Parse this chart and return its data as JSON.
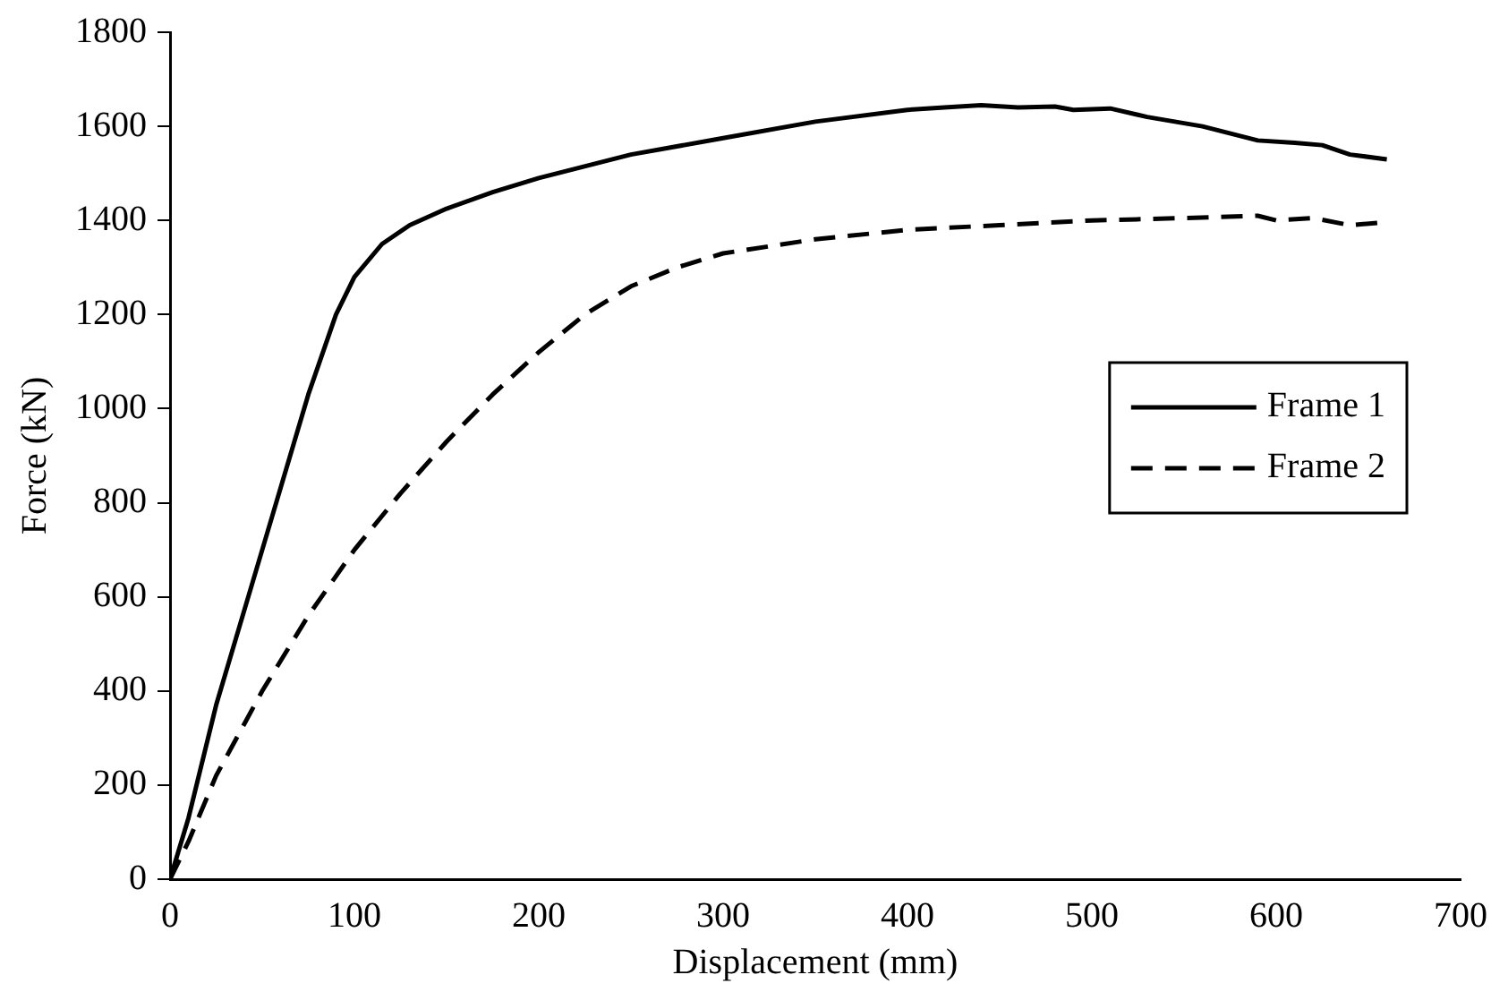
{
  "chart_data": {
    "type": "line",
    "xlabel": "Displacement (mm)",
    "ylabel": "Force (kN)",
    "xlim": [
      0,
      700
    ],
    "xticks": [
      0,
      100,
      200,
      300,
      400,
      500,
      600,
      700
    ],
    "ylim": [
      0,
      1800
    ],
    "yticks": [
      0,
      200,
      400,
      600,
      800,
      1000,
      1200,
      1400,
      1600,
      1800
    ],
    "grid": false,
    "legend": "right",
    "marker": "none",
    "series": [
      {
        "name": "Frame 1",
        "color": "#000000",
        "line_style": "solid",
        "x": [
          0,
          10,
          25,
          50,
          75,
          90,
          100,
          115,
          130,
          150,
          175,
          200,
          250,
          300,
          350,
          400,
          420,
          440,
          460,
          480,
          490,
          510,
          530,
          560,
          590,
          610,
          625,
          640,
          660
        ],
        "values": [
          0,
          130,
          370,
          700,
          1030,
          1200,
          1280,
          1350,
          1390,
          1425,
          1460,
          1490,
          1540,
          1575,
          1610,
          1635,
          1640,
          1645,
          1640,
          1642,
          1635,
          1638,
          1620,
          1600,
          1570,
          1565,
          1560,
          1540,
          1530
        ]
      },
      {
        "name": "Frame 2",
        "color": "#000000",
        "line_style": "dashed",
        "x": [
          0,
          10,
          25,
          50,
          75,
          100,
          125,
          150,
          175,
          200,
          225,
          250,
          275,
          300,
          350,
          400,
          450,
          500,
          550,
          590,
          600,
          620,
          640,
          655
        ],
        "values": [
          0,
          80,
          220,
          400,
          560,
          700,
          820,
          930,
          1030,
          1120,
          1200,
          1260,
          1300,
          1330,
          1360,
          1380,
          1390,
          1400,
          1405,
          1410,
          1400,
          1405,
          1390,
          1395
        ]
      }
    ]
  }
}
